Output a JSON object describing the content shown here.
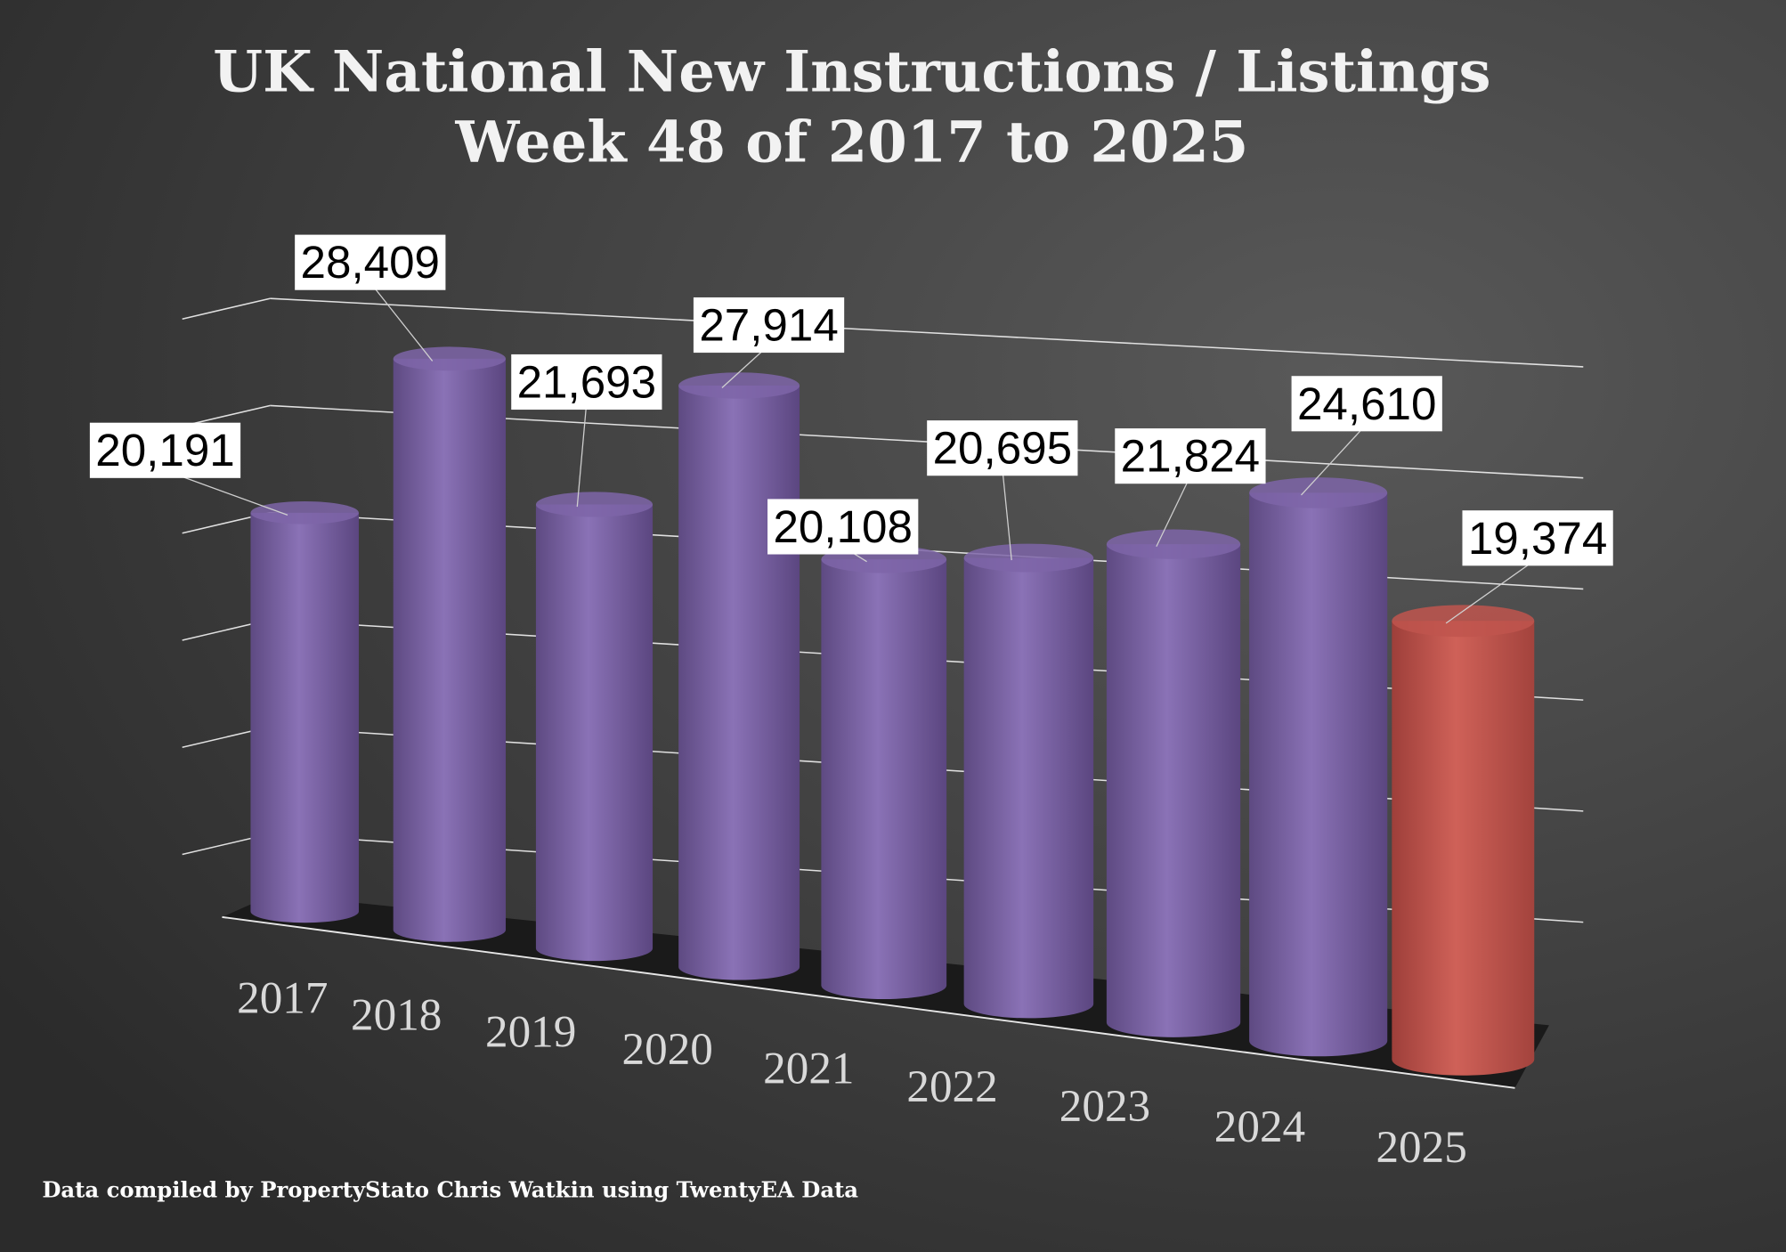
{
  "chart_data": {
    "type": "bar",
    "style": "3d-cylinder",
    "title": "UK National New Instructions / Listings",
    "subtitle": "Week 48 of 2017 to 2025",
    "categories": [
      "2017",
      "2018",
      "2019",
      "2020",
      "2021",
      "2022",
      "2023",
      "2024",
      "2025"
    ],
    "values": [
      20191,
      28409,
      21693,
      27914,
      20108,
      20695,
      21824,
      24610,
      19374
    ],
    "data_labels": [
      "20,191",
      "28,409",
      "21,693",
      "27,914",
      "20,108",
      "20,695",
      "21,824",
      "24,610",
      "19,374"
    ],
    "colors": [
      "#7e65a8",
      "#7e65a8",
      "#7e65a8",
      "#7e65a8",
      "#7e65a8",
      "#7e65a8",
      "#7e65a8",
      "#7e65a8",
      "#c0554e"
    ],
    "xlabel": "",
    "ylabel": "",
    "grid": true,
    "legend": "none"
  },
  "footer": "Data compiled by PropertyStato Chris Watkin using TwentyEA Data"
}
